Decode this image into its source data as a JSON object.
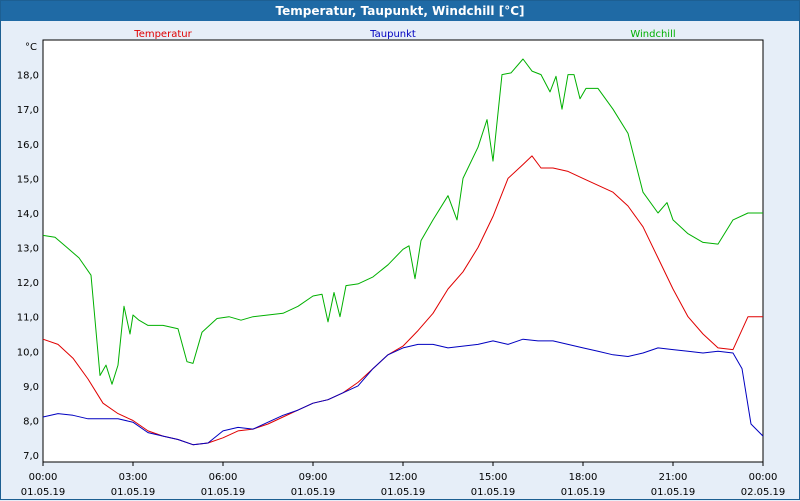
{
  "window": {
    "title": "Temperatur, Taupunkt, Windchill [°C]"
  },
  "chart_data": {
    "type": "line",
    "title": "Temperatur, Taupunkt, Windchill [°C]",
    "ylabel": "°C",
    "xlabel": "",
    "ylim": [
      6.8,
      19.0
    ],
    "xlim": [
      0,
      24
    ],
    "grid": true,
    "legend_position": "top",
    "y_ticks": [
      7.0,
      8.0,
      9.0,
      10.0,
      11.0,
      12.0,
      13.0,
      14.0,
      15.0,
      16.0,
      17.0,
      18.0
    ],
    "y_tick_labels": [
      "7,0",
      "8,0",
      "9,0",
      "10,0",
      "11,0",
      "12,0",
      "13,0",
      "14,0",
      "15,0",
      "16,0",
      "17,0",
      "18,0"
    ],
    "x_ticks": [
      {
        "time": "00:00",
        "date": "01.05.19"
      },
      {
        "time": "03:00",
        "date": "01.05.19"
      },
      {
        "time": "06:00",
        "date": "01.05.19"
      },
      {
        "time": "09:00",
        "date": "01.05.19"
      },
      {
        "time": "12:00",
        "date": "01.05.19"
      },
      {
        "time": "15:00",
        "date": "01.05.19"
      },
      {
        "time": "18:00",
        "date": "01.05.19"
      },
      {
        "time": "21:00",
        "date": "01.05.19"
      },
      {
        "time": "00:00",
        "date": "02.05.19"
      }
    ],
    "x_unit": "hours since 01.05.19 00:00",
    "series": [
      {
        "name": "Temperatur",
        "color": "#e00000",
        "x": [
          0,
          0.5,
          1,
          1.5,
          2,
          2.5,
          3,
          3.5,
          4,
          4.5,
          5,
          5.5,
          6,
          6.5,
          7,
          7.5,
          8,
          8.5,
          9,
          9.5,
          10,
          10.5,
          11,
          11.5,
          12,
          12.5,
          13,
          13.5,
          14,
          14.5,
          15,
          15.5,
          16,
          16.3,
          16.6,
          17,
          17.5,
          18,
          18.5,
          19,
          19.5,
          20,
          20.5,
          21,
          21.5,
          22,
          22.5,
          23,
          23.5,
          24
        ],
        "y": [
          10.35,
          10.2,
          9.8,
          9.2,
          8.5,
          8.2,
          8.0,
          7.7,
          7.55,
          7.45,
          7.3,
          7.35,
          7.5,
          7.7,
          7.75,
          7.9,
          8.1,
          8.3,
          8.5,
          8.6,
          8.8,
          9.1,
          9.5,
          9.9,
          10.15,
          10.6,
          11.1,
          11.8,
          12.3,
          13.0,
          13.9,
          15.0,
          15.4,
          15.65,
          15.3,
          15.3,
          15.2,
          15.0,
          14.8,
          14.6,
          14.2,
          13.6,
          12.7,
          11.8,
          11.0,
          10.5,
          10.1,
          10.05,
          11.0,
          11.0
        ]
      },
      {
        "name": "Taupunkt",
        "color": "#0000c0",
        "x": [
          0,
          0.5,
          1,
          1.5,
          2,
          2.5,
          3,
          3.5,
          4,
          4.5,
          5,
          5.5,
          6,
          6.5,
          7,
          7.5,
          8,
          8.5,
          9,
          9.5,
          10,
          10.5,
          11,
          11.5,
          12,
          12.5,
          13,
          13.5,
          14,
          14.5,
          15,
          15.5,
          16,
          16.5,
          17,
          17.5,
          18,
          18.5,
          19,
          19.5,
          20,
          20.5,
          21,
          21.5,
          22,
          22.5,
          23,
          23.3,
          23.6,
          24
        ],
        "y": [
          8.1,
          8.2,
          8.15,
          8.05,
          8.05,
          8.05,
          7.95,
          7.65,
          7.55,
          7.45,
          7.3,
          7.35,
          7.7,
          7.8,
          7.75,
          7.95,
          8.15,
          8.3,
          8.5,
          8.6,
          8.8,
          9.0,
          9.5,
          9.9,
          10.1,
          10.2,
          10.2,
          10.1,
          10.15,
          10.2,
          10.3,
          10.2,
          10.35,
          10.3,
          10.3,
          10.2,
          10.1,
          10.0,
          9.9,
          9.85,
          9.95,
          10.1,
          10.05,
          10.0,
          9.95,
          10.0,
          9.95,
          9.5,
          7.9,
          7.55
        ]
      },
      {
        "name": "Windchill",
        "color": "#00b000",
        "x": [
          0,
          0.4,
          0.8,
          1.2,
          1.6,
          1.9,
          2.1,
          2.3,
          2.5,
          2.7,
          2.9,
          3.0,
          3.2,
          3.5,
          4.0,
          4.5,
          4.8,
          5.0,
          5.3,
          5.8,
          6.2,
          6.6,
          7.0,
          7.5,
          8.0,
          8.5,
          9.0,
          9.3,
          9.5,
          9.7,
          9.9,
          10.1,
          10.5,
          11.0,
          11.5,
          12.0,
          12.2,
          12.4,
          12.6,
          13.0,
          13.5,
          13.8,
          14.0,
          14.5,
          14.8,
          15.0,
          15.3,
          15.6,
          16.0,
          16.3,
          16.6,
          16.9,
          17.1,
          17.3,
          17.5,
          17.7,
          17.9,
          18.1,
          18.5,
          19.0,
          19.5,
          20.0,
          20.5,
          20.8,
          21.0,
          21.5,
          22.0,
          22.5,
          23.0,
          23.5,
          24.0
        ],
        "y": [
          13.35,
          13.3,
          13.0,
          12.7,
          12.2,
          9.3,
          9.6,
          9.05,
          9.6,
          11.3,
          10.5,
          11.05,
          10.9,
          10.75,
          10.75,
          10.65,
          9.7,
          9.65,
          10.55,
          10.95,
          11.0,
          10.9,
          11.0,
          11.05,
          11.1,
          11.3,
          11.6,
          11.65,
          10.85,
          11.7,
          11.0,
          11.9,
          11.95,
          12.15,
          12.5,
          12.95,
          13.05,
          12.1,
          13.2,
          13.8,
          14.5,
          13.8,
          15.0,
          15.9,
          16.7,
          15.5,
          18.0,
          18.05,
          18.45,
          18.1,
          18.0,
          17.5,
          17.95,
          17.0,
          18.0,
          18.0,
          17.3,
          17.6,
          17.6,
          17.0,
          16.3,
          14.6,
          14.0,
          14.3,
          13.8,
          13.4,
          13.15,
          13.1,
          13.8,
          14.0,
          14.0
        ]
      }
    ]
  }
}
